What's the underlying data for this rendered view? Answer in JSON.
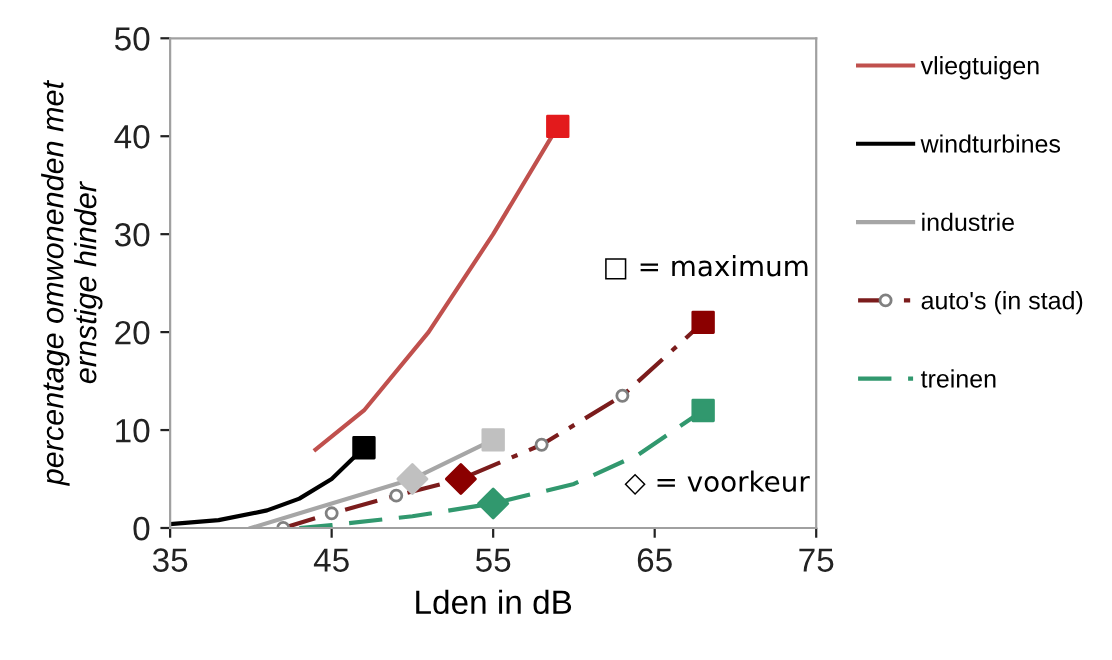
{
  "chart_data": {
    "type": "line",
    "xlabel": "Lden in dB",
    "ylabel": "percentage omwonenden met\nernstige hinder",
    "xlim": [
      35,
      75
    ],
    "xticks": [
      35,
      45,
      55,
      65,
      75
    ],
    "ylim": [
      0,
      50
    ],
    "yticks": [
      0,
      10,
      20,
      30,
      40,
      50
    ],
    "grid": false,
    "legend": "right",
    "series": [
      {
        "name": "vliegtuigen",
        "color": "#c0504d",
        "line_style": "solid",
        "marker": "none",
        "x": [
          44,
          47,
          51,
          55,
          59
        ],
        "values": [
          8,
          12,
          20,
          30,
          41
        ]
      },
      {
        "name": "windturbines",
        "color": "#000000",
        "line_style": "solid",
        "marker": "none",
        "x": [
          35,
          38,
          41,
          43,
          45,
          47
        ],
        "values": [
          0.4,
          0.8,
          1.8,
          3,
          5,
          8.2
        ]
      },
      {
        "name": "industrie",
        "color": "#a6a6a6",
        "line_style": "solid",
        "marker": "none",
        "x": [
          40,
          50,
          55
        ],
        "values": [
          0,
          5,
          9
        ]
      },
      {
        "name": "auto's (in stad)",
        "color": "#7b1c1c",
        "line_style": "dashdot",
        "marker": "circle",
        "x": [
          42,
          45,
          49,
          53,
          58,
          63,
          68
        ],
        "values": [
          0,
          1.5,
          3.3,
          5,
          8.5,
          13.5,
          21
        ]
      },
      {
        "name": "treinen",
        "color": "#31986e",
        "line_style": "dashed",
        "marker": "none",
        "x": [
          43,
          45,
          50,
          55,
          60,
          64,
          68
        ],
        "values": [
          0,
          0.3,
          1.2,
          2.5,
          4.5,
          7.5,
          12
        ]
      },
      {
        "type": "scatter",
        "marker": "square",
        "x": [
          59,
          47,
          55,
          68,
          68
        ],
        "values": [
          41,
          8.2,
          9,
          21,
          12
        ],
        "colors": [
          "#e31a1c",
          "#000000",
          "#c0c0c0",
          "#8b0000",
          "#31986e"
        ]
      },
      {
        "type": "scatter",
        "marker": "diamond",
        "x": [
          50,
          53,
          55
        ],
        "values": [
          5,
          5,
          2.5
        ],
        "colors": [
          "#c0c0c0",
          "#8b0000",
          "#31986e"
        ]
      }
    ],
    "annotations": [
      "□ = maximum",
      "◇ = voorkeur"
    ]
  }
}
